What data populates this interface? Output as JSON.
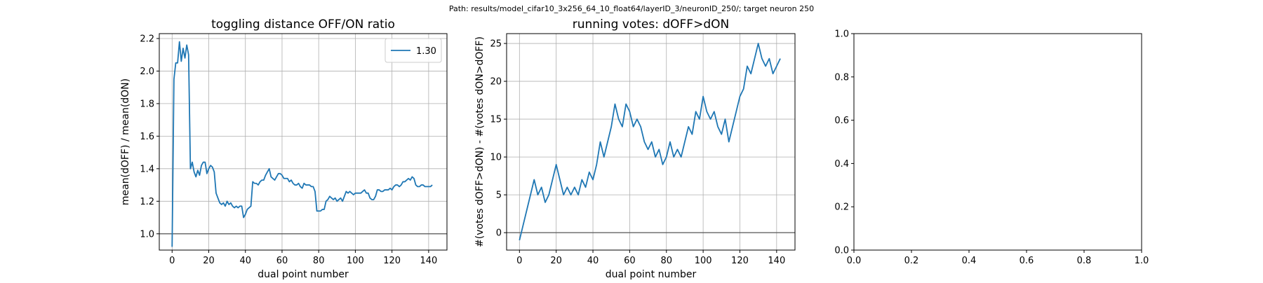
{
  "suptitle": "Path: results/model_cifar10_3x256_64_10_float64/layerID_3/neuronID_250/; target neuron 250",
  "chart_data": [
    {
      "type": "line",
      "title": "toggling distance OFF/ON ratio",
      "xlabel": "dual point number",
      "ylabel": "mean(dOFF) / mean(dON)",
      "xlim": [
        -7,
        150
      ],
      "ylim": [
        0.9,
        2.23
      ],
      "xticks": [
        0,
        20,
        40,
        60,
        80,
        100,
        120,
        140
      ],
      "yticks": [
        1.0,
        1.2,
        1.4,
        1.6,
        1.8,
        2.0,
        2.2
      ],
      "ytick_labels": [
        "1.0",
        "1.2",
        "1.4",
        "1.6",
        "1.8",
        "2.0",
        "2.2"
      ],
      "grid": true,
      "legend": {
        "position": "top-right",
        "entries": [
          "1.30"
        ]
      },
      "hline": 1.0,
      "series": [
        {
          "name": "1.30",
          "color": "#1f77b4",
          "x": [
            0,
            1,
            2,
            3,
            4,
            5,
            6,
            7,
            8,
            9,
            10,
            11,
            12,
            13,
            14,
            15,
            16,
            17,
            18,
            19,
            20,
            21,
            22,
            23,
            24,
            25,
            26,
            27,
            28,
            29,
            30,
            31,
            32,
            33,
            34,
            35,
            36,
            37,
            38,
            39,
            40,
            41,
            42,
            43,
            44,
            45,
            46,
            47,
            48,
            49,
            50,
            51,
            52,
            53,
            54,
            55,
            56,
            57,
            58,
            59,
            60,
            61,
            62,
            63,
            64,
            65,
            66,
            67,
            68,
            69,
            70,
            71,
            72,
            73,
            74,
            75,
            76,
            77,
            78,
            79,
            80,
            81,
            82,
            83,
            84,
            85,
            86,
            87,
            88,
            89,
            90,
            91,
            92,
            93,
            94,
            95,
            96,
            97,
            98,
            99,
            100,
            101,
            102,
            103,
            104,
            105,
            106,
            107,
            108,
            109,
            110,
            111,
            112,
            113,
            114,
            115,
            116,
            117,
            118,
            119,
            120,
            121,
            122,
            123,
            124,
            125,
            126,
            127,
            128,
            129,
            130,
            131,
            132,
            133,
            134,
            135,
            136,
            137,
            138,
            139,
            140,
            141,
            142
          ],
          "y": [
            0.92,
            1.95,
            2.05,
            2.05,
            2.18,
            2.06,
            2.14,
            2.08,
            2.16,
            2.1,
            1.4,
            1.44,
            1.38,
            1.35,
            1.39,
            1.36,
            1.42,
            1.44,
            1.44,
            1.37,
            1.4,
            1.42,
            1.41,
            1.38,
            1.25,
            1.22,
            1.19,
            1.18,
            1.19,
            1.17,
            1.2,
            1.18,
            1.19,
            1.17,
            1.16,
            1.17,
            1.16,
            1.17,
            1.17,
            1.1,
            1.12,
            1.15,
            1.16,
            1.17,
            1.32,
            1.31,
            1.31,
            1.3,
            1.32,
            1.33,
            1.33,
            1.36,
            1.38,
            1.4,
            1.35,
            1.34,
            1.33,
            1.35,
            1.37,
            1.37,
            1.36,
            1.34,
            1.34,
            1.34,
            1.32,
            1.33,
            1.31,
            1.3,
            1.3,
            1.31,
            1.29,
            1.28,
            1.31,
            1.3,
            1.3,
            1.3,
            1.29,
            1.29,
            1.26,
            1.14,
            1.14,
            1.14,
            1.15,
            1.15,
            1.2,
            1.21,
            1.23,
            1.22,
            1.21,
            1.22,
            1.2,
            1.21,
            1.22,
            1.2,
            1.23,
            1.26,
            1.25,
            1.26,
            1.25,
            1.24,
            1.25,
            1.25,
            1.25,
            1.25,
            1.26,
            1.27,
            1.25,
            1.25,
            1.22,
            1.21,
            1.21,
            1.23,
            1.27,
            1.27,
            1.26,
            1.26,
            1.27,
            1.27,
            1.27,
            1.28,
            1.27,
            1.29,
            1.3,
            1.3,
            1.29,
            1.3,
            1.32,
            1.32,
            1.33,
            1.34,
            1.33,
            1.35,
            1.34,
            1.3,
            1.29,
            1.29,
            1.3,
            1.3,
            1.29,
            1.29,
            1.29,
            1.29,
            1.3
          ]
        }
      ]
    },
    {
      "type": "line",
      "title": "running votes: dOFF>dON",
      "xlabel": "dual point number",
      "ylabel": "#(votes dOFF>dON) - #(votes dON>dOFF)",
      "xlim": [
        -7,
        150
      ],
      "ylim": [
        -2.3,
        26.3
      ],
      "xticks": [
        0,
        20,
        40,
        60,
        80,
        100,
        120,
        140
      ],
      "yticks": [
        0,
        5,
        10,
        15,
        20,
        25
      ],
      "ytick_labels": [
        "0",
        "5",
        "10",
        "15",
        "20",
        "25"
      ],
      "grid": true,
      "hline": 0,
      "series": [
        {
          "color": "#1f77b4",
          "x": [
            0,
            2,
            4,
            6,
            8,
            10,
            12,
            14,
            16,
            18,
            20,
            22,
            24,
            26,
            28,
            30,
            32,
            34,
            36,
            38,
            40,
            42,
            44,
            46,
            48,
            50,
            52,
            54,
            56,
            58,
            60,
            62,
            64,
            66,
            68,
            70,
            72,
            74,
            76,
            78,
            80,
            82,
            84,
            86,
            88,
            90,
            92,
            94,
            96,
            98,
            100,
            102,
            104,
            106,
            108,
            110,
            112,
            114,
            116,
            118,
            120,
            122,
            124,
            126,
            128,
            130,
            132,
            134,
            136,
            138,
            140,
            142
          ],
          "y": [
            -1,
            1,
            3,
            5,
            7,
            5,
            6,
            4,
            5,
            7,
            9,
            7,
            5,
            6,
            5,
            6,
            5,
            7,
            6,
            8,
            7,
            9,
            12,
            10,
            12,
            14,
            17,
            15,
            14,
            17,
            16,
            14,
            15,
            14,
            12,
            11,
            12,
            10,
            11,
            9,
            10,
            12,
            10,
            11,
            10,
            12,
            14,
            13,
            16,
            15,
            18,
            16,
            15,
            16,
            14,
            13,
            15,
            12,
            14,
            16,
            18,
            19,
            22,
            21,
            23,
            25,
            23,
            22,
            23,
            21,
            22,
            23
          ]
        }
      ]
    },
    {
      "type": "line",
      "title": "",
      "xlabel": "",
      "ylabel": "",
      "xlim": [
        0,
        1
      ],
      "ylim": [
        0,
        1
      ],
      "xticks": [
        0,
        0.2,
        0.4,
        0.6,
        0.8,
        1.0
      ],
      "xtick_labels": [
        "0.0",
        "0.2",
        "0.4",
        "0.6",
        "0.8",
        "1.0"
      ],
      "yticks": [
        0,
        0.2,
        0.4,
        0.6,
        0.8,
        1.0
      ],
      "ytick_labels": [
        "0.0",
        "0.2",
        "0.4",
        "0.6",
        "0.8",
        "1.0"
      ],
      "grid": false,
      "series": []
    }
  ]
}
